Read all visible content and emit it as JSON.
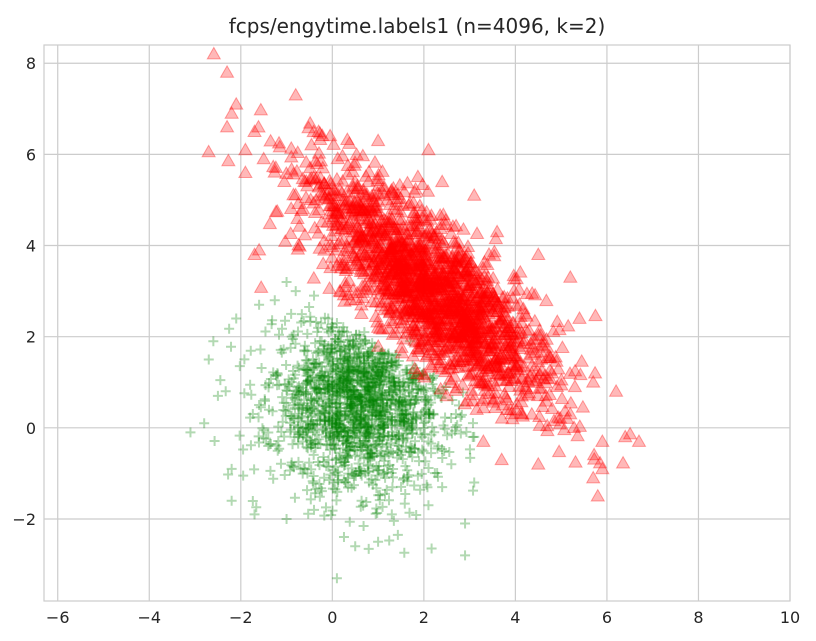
{
  "chart_data": {
    "type": "scatter",
    "title": "fcps/engytime.labels1 (n=4096, k=2)",
    "xlabel": "",
    "ylabel": "",
    "xlim": [
      -6.3,
      10
    ],
    "ylim": [
      -3.8,
      8.4
    ],
    "x_ticks": [
      -6,
      -4,
      -2,
      0,
      2,
      4,
      6,
      8,
      10
    ],
    "y_ticks": [
      -2,
      0,
      2,
      4,
      6,
      8
    ],
    "x_tick_labels": [
      "−6",
      "−4",
      "−2",
      "0",
      "2",
      "4",
      "6",
      "8",
      "10"
    ],
    "y_tick_labels": [
      "−2",
      "0",
      "2",
      "4",
      "6",
      "8"
    ],
    "grid": true,
    "series": [
      {
        "marker": "triangle",
        "color": "#ff0000",
        "count_approx": 2048,
        "center": [
          2.2,
          3.0
        ],
        "points_sample": [
          [
            -2.3,
            7.8
          ],
          [
            -2.1,
            7.1
          ],
          [
            -2.2,
            6.9
          ],
          [
            -2.3,
            6.6
          ],
          [
            -0.8,
            7.3
          ],
          [
            -1.7,
            6.5
          ],
          [
            -1.9,
            6.1
          ],
          [
            -1.5,
            5.9
          ],
          [
            -1.9,
            5.6
          ],
          [
            -1.7,
            3.8
          ],
          [
            -1.6,
            3.9
          ],
          [
            -0.3,
            6.5
          ],
          [
            1.0,
            6.3
          ],
          [
            2.1,
            6.1
          ],
          [
            2.4,
            5.4
          ],
          [
            3.1,
            5.1
          ],
          [
            3.6,
            4.3
          ],
          [
            4.5,
            3.8
          ],
          [
            5.2,
            3.3
          ],
          [
            5.4,
            2.4
          ],
          [
            5.7,
            1.0
          ],
          [
            6.2,
            0.8
          ],
          [
            5.3,
            0.9
          ],
          [
            6.4,
            -0.2
          ],
          [
            6.7,
            -0.3
          ],
          [
            5.9,
            -0.3
          ],
          [
            5.9,
            -0.9
          ],
          [
            5.7,
            -1.1
          ],
          [
            5.8,
            -1.5
          ],
          [
            4.5,
            -0.8
          ],
          [
            3.7,
            -0.7
          ],
          [
            3.3,
            -0.3
          ],
          [
            2.5,
            0.7
          ],
          [
            1.8,
            1.3
          ],
          [
            1.0,
            2.2
          ],
          [
            0.4,
            2.8
          ],
          [
            -0.2,
            3.6
          ],
          [
            0.6,
            4.8
          ],
          [
            1.5,
            3.5
          ],
          [
            2.8,
            2.6
          ],
          [
            3.9,
            1.8
          ],
          [
            4.8,
            1.2
          ],
          [
            2.0,
            4.2
          ],
          [
            1.2,
            5.0
          ],
          [
            3.4,
            3.3
          ]
        ]
      },
      {
        "marker": "plus",
        "color": "#008000",
        "count_approx": 2048,
        "center": [
          0.6,
          0.6
        ],
        "points_sample": [
          [
            -3.1,
            -0.1
          ],
          [
            -2.8,
            0.1
          ],
          [
            -2.5,
            0.7
          ],
          [
            -2.7,
            1.5
          ],
          [
            -2.6,
            1.9
          ],
          [
            -2.1,
            2.4
          ],
          [
            -1.6,
            2.7
          ],
          [
            -1.0,
            3.2
          ],
          [
            -0.8,
            3.0
          ],
          [
            -0.4,
            2.9
          ],
          [
            -2.2,
            -0.9
          ],
          [
            -2.2,
            -1.6
          ],
          [
            -1.7,
            -1.9
          ],
          [
            -1.0,
            -2.0
          ],
          [
            -0.4,
            -1.8
          ],
          [
            0.5,
            -2.6
          ],
          [
            0.1,
            -3.3
          ],
          [
            1.0,
            -2.5
          ],
          [
            1.3,
            -1.9
          ],
          [
            2.1,
            -1.7
          ],
          [
            2.9,
            -2.1
          ],
          [
            2.9,
            -2.8
          ],
          [
            3.1,
            -1.2
          ],
          [
            2.6,
            -0.8
          ],
          [
            3.1,
            -0.2
          ],
          [
            2.7,
            0.3
          ],
          [
            1.9,
            0.9
          ],
          [
            1.4,
            1.6
          ],
          [
            0.7,
            2.1
          ],
          [
            0.1,
            2.3
          ],
          [
            -0.6,
            1.8
          ],
          [
            -1.2,
            1.2
          ],
          [
            -1.6,
            0.5
          ],
          [
            -1.4,
            -0.4
          ],
          [
            -0.6,
            -0.9
          ],
          [
            0.3,
            -0.6
          ],
          [
            1.0,
            0.0
          ],
          [
            1.6,
            0.4
          ],
          [
            0.4,
            0.9
          ],
          [
            -0.3,
            0.3
          ],
          [
            0.8,
            -1.2
          ],
          [
            2.1,
            -0.3
          ],
          [
            -0.9,
            2.5
          ],
          [
            1.7,
            1.9
          ],
          [
            2.4,
            -1.3
          ]
        ]
      }
    ]
  }
}
